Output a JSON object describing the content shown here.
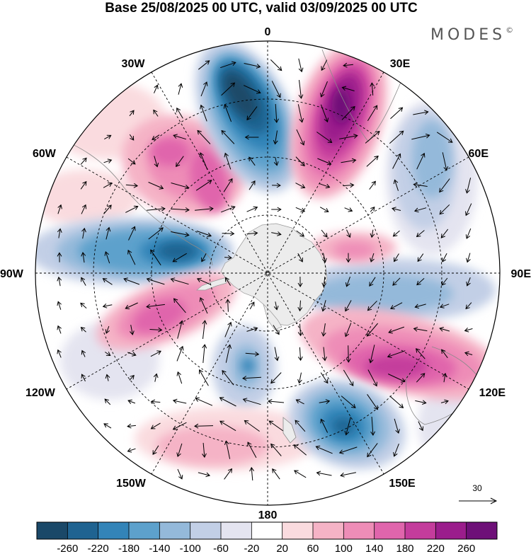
{
  "title": "Base 25/08/2025 00 UTC, valid 03/09/2025 00 UTC",
  "brand": "MODES",
  "brand_mark": "©",
  "longitude_labels": {
    "lon_0": "0",
    "lon_30e": "30E",
    "lon_60e": "60E",
    "lon_90e": "90E",
    "lon_120e": "120E",
    "lon_150e": "150E",
    "lon_180": "180",
    "lon_150w": "150W",
    "lon_120w": "120W",
    "lon_90w": "90W",
    "lon_60w": "60W",
    "lon_30w": "30W"
  },
  "reference_vector": {
    "label": "30"
  },
  "colorbar": {
    "ticks": [
      "-260",
      "-220",
      "-180",
      "-140",
      "-100",
      "-60",
      "-20",
      "20",
      "60",
      "100",
      "140",
      "180",
      "220",
      "260"
    ],
    "colors": [
      "#1a4868",
      "#1f6391",
      "#3384b8",
      "#5da1cc",
      "#94b9da",
      "#c2cfe6",
      "#e4e4f0",
      "#ffffff",
      "#fadbdf",
      "#f5b3c6",
      "#ee8db7",
      "#e065ac",
      "#c43c9c",
      "#9b1d8c",
      "#6e1078"
    ]
  },
  "colors": {
    "land": "#ececec",
    "grid": "#000000",
    "arrow": "#000000"
  }
}
